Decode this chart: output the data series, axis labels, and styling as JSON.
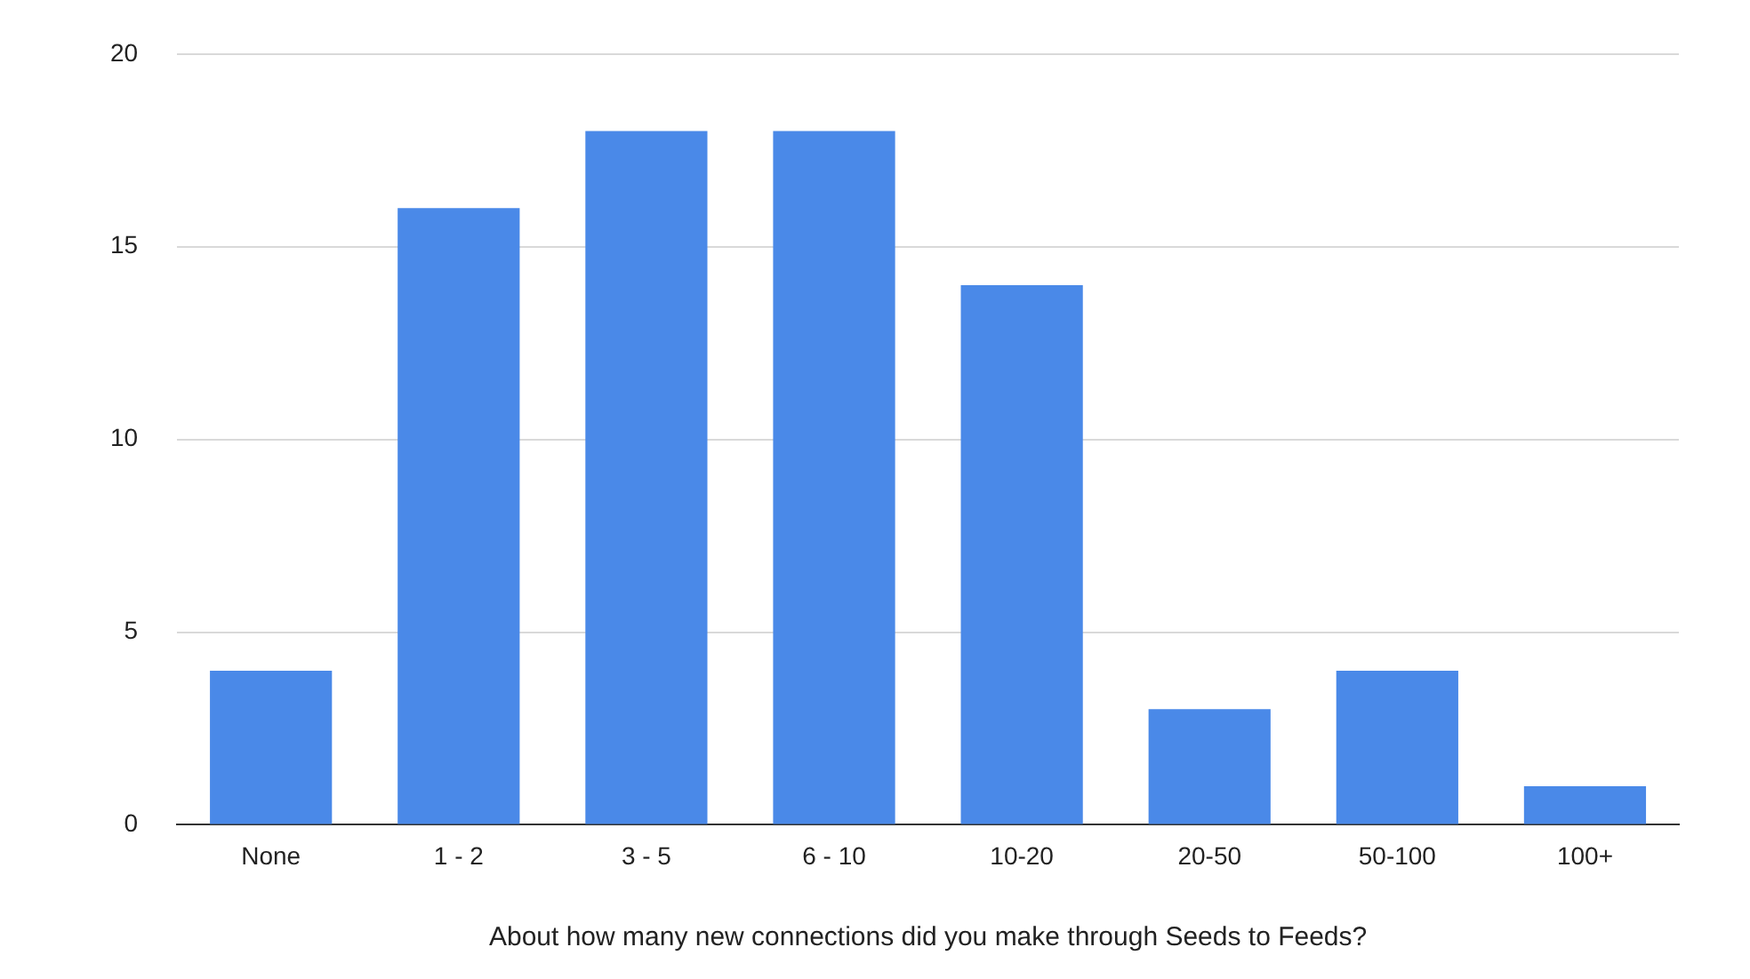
{
  "chart_data": {
    "type": "bar",
    "xlabel": "About how many new connections did you make through Seeds to Feeds?",
    "categories": [
      "None",
      "1 - 2",
      "3 - 5",
      "6 - 10",
      "10-20",
      "20-50",
      "50-100",
      "100+"
    ],
    "values": [
      4,
      16,
      18,
      18,
      14,
      3,
      4,
      1
    ],
    "color": "#4a89e8",
    "ylim": [
      0,
      20
    ],
    "yticks": [
      0,
      5,
      10,
      15,
      20
    ],
    "grid": "y"
  }
}
